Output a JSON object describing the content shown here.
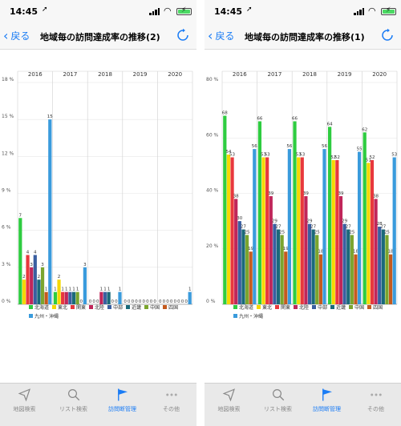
{
  "screens": [
    {
      "status": {
        "time": "14:45",
        "loc_icon": "location-arrow-icon"
      },
      "nav": {
        "back_label": "戻る",
        "title": "地域毎の訪問達成率の推移(2)"
      },
      "tabs": [
        {
          "label": "地図検索",
          "icon": "map-arrow-icon"
        },
        {
          "label": "リスト検索",
          "icon": "search-icon"
        },
        {
          "label": "訪問断管理",
          "icon": "flag-icon",
          "active": true
        },
        {
          "label": "その他",
          "icon": "more-dots-icon"
        }
      ]
    },
    {
      "status": {
        "time": "14:45",
        "loc_icon": "location-arrow-icon"
      },
      "nav": {
        "back_label": "戻る",
        "title": "地域毎の訪問達成率の推移(1)"
      },
      "tabs": [
        {
          "label": "地図検索",
          "icon": "map-arrow-icon"
        },
        {
          "label": "リスト検索",
          "icon": "search-icon"
        },
        {
          "label": "訪問断管理",
          "icon": "flag-icon",
          "active": true
        },
        {
          "label": "その他",
          "icon": "more-dots-icon"
        }
      ]
    }
  ],
  "legend": [
    {
      "name": "北海道",
      "color": "#2ecc40"
    },
    {
      "name": "東北",
      "color": "#f5d800"
    },
    {
      "name": "関東",
      "color": "#e8383d"
    },
    {
      "name": "北陸",
      "color": "#c0265a"
    },
    {
      "name": "中部",
      "color": "#3a5fa0"
    },
    {
      "name": "近畿",
      "color": "#1b6a7a"
    },
    {
      "name": "中国",
      "color": "#7ba52e"
    },
    {
      "name": "四国",
      "color": "#c45a1e"
    },
    {
      "name": "九州・沖縄",
      "color": "#3a9bdc"
    }
  ],
  "chart_data": [
    {
      "type": "bar",
      "categories": [
        "2016",
        "2017",
        "2018",
        "2019",
        "2020"
      ],
      "ylim": [
        0,
        18
      ],
      "yticks": [
        0,
        3,
        6,
        9,
        12,
        15,
        18
      ],
      "ytick_labels": [
        "0 %",
        "3 %",
        "6 %",
        "9 %",
        "12 %",
        "15 %",
        "18 %"
      ],
      "series": [
        {
          "name": "北海道",
          "values": [
            7,
            1,
            0,
            0,
            0
          ]
        },
        {
          "name": "東北",
          "values": [
            2,
            2,
            0,
            0,
            0
          ]
        },
        {
          "name": "関東",
          "values": [
            4,
            1,
            0,
            0,
            0
          ]
        },
        {
          "name": "北陸",
          "values": [
            3,
            1,
            1,
            0,
            0
          ]
        },
        {
          "name": "中部",
          "values": [
            4,
            1,
            1,
            0,
            0
          ]
        },
        {
          "name": "近畿",
          "values": [
            2,
            1,
            1,
            0,
            0
          ]
        },
        {
          "name": "中国",
          "values": [
            3,
            1,
            0,
            0,
            0
          ]
        },
        {
          "name": "四国",
          "values": [
            1,
            0,
            0,
            0,
            0
          ]
        },
        {
          "name": "九州・沖縄",
          "values": [
            15,
            3,
            1,
            0,
            1
          ]
        }
      ]
    },
    {
      "type": "bar",
      "categories": [
        "2016",
        "2017",
        "2018",
        "2019",
        "2020"
      ],
      "ylim": [
        0,
        80
      ],
      "yticks": [
        0,
        20,
        40,
        60,
        80
      ],
      "ytick_labels": [
        "0 %",
        "20 %",
        "40 %",
        "60 %",
        "80 %"
      ],
      "series": [
        {
          "name": "北海道",
          "values": [
            68,
            66,
            66,
            64,
            62
          ]
        },
        {
          "name": "東北",
          "values": [
            54,
            53,
            53,
            52,
            51
          ]
        },
        {
          "name": "関東",
          "values": [
            53,
            53,
            53,
            52,
            52
          ]
        },
        {
          "name": "北陸",
          "values": [
            38,
            39,
            39,
            39,
            38
          ]
        },
        {
          "name": "中部",
          "values": [
            30,
            29,
            29,
            29,
            28
          ]
        },
        {
          "name": "近畿",
          "values": [
            27,
            27,
            27,
            27,
            27
          ]
        },
        {
          "name": "中国",
          "values": [
            25,
            25,
            25,
            25,
            25
          ]
        },
        {
          "name": "四国",
          "values": [
            19,
            19,
            18,
            18,
            18
          ]
        },
        {
          "name": "九州・沖縄",
          "values": [
            56,
            56,
            56,
            55,
            53
          ]
        }
      ]
    }
  ]
}
